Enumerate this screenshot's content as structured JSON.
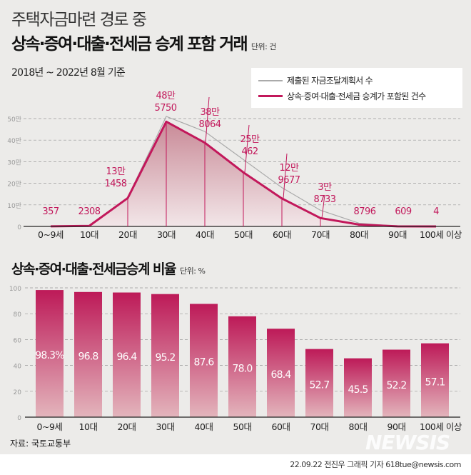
{
  "header": {
    "title_line1": "주택자금마련 경로 중",
    "title_line2": "상속·증여·대출·전세금 승계 포함 거래",
    "unit": "단위: 건",
    "subtitle": "2018년 ~ 2022년 8월 기준"
  },
  "legend": {
    "items": [
      {
        "label": "제출된 자금조달계획서 수",
        "color": "#aaaaaa"
      },
      {
        "label": "상속·증여·대출·전세금 승계가 포함된 건수",
        "color": "#c2185b"
      }
    ]
  },
  "section2": {
    "title": "상속·증여·대출·전세금승계 비율",
    "unit": "단위: %"
  },
  "footer": {
    "source": "자료: 국토교통부",
    "credit": "22.09.22 전진우 그래픽 기자 618tue@newsis.com",
    "watermark": "NEWSIS"
  },
  "colors": {
    "accent": "#c2185b",
    "gray_line": "#aaaaaa",
    "background": "#ecebe9"
  },
  "chart_data": [
    {
      "type": "area",
      "categories": [
        "0~9세",
        "10대",
        "20대",
        "30대",
        "40대",
        "50대",
        "60대",
        "70대",
        "80대",
        "90대",
        "100세 이상"
      ],
      "yticks": [
        "0",
        "10만",
        "20만",
        "30만",
        "40만",
        "50만"
      ],
      "ylim": [
        0,
        500000
      ],
      "grid": true,
      "legend": "top-right",
      "series": [
        {
          "name": "제출된 자금조달계획서 수",
          "values": [
            400,
            2500,
            135000,
            510000,
            440000,
            310000,
            180000,
            75000,
            15000,
            1000,
            10
          ]
        },
        {
          "name": "상속·증여·대출·전세금 승계가 포함된 건수",
          "values": [
            357,
            2308,
            131458,
            485750,
            388064,
            250462,
            129677,
            38733,
            8796,
            609,
            4
          ],
          "labels": [
            [
              "357"
            ],
            [
              "2308"
            ],
            [
              "13만",
              "1458"
            ],
            [
              "48만",
              "5750"
            ],
            [
              "38만",
              "8064"
            ],
            [
              "25만",
              "462"
            ],
            [
              "12만",
              "9677"
            ],
            [
              "3만",
              "8733"
            ],
            [
              "8796"
            ],
            [
              "609"
            ],
            [
              "4"
            ]
          ]
        }
      ]
    },
    {
      "type": "bar",
      "categories": [
        "0~9세",
        "10대",
        "20대",
        "30대",
        "40대",
        "50대",
        "60대",
        "70대",
        "80대",
        "90대",
        "100세 이상"
      ],
      "values": [
        98.3,
        96.8,
        96.4,
        95.2,
        87.6,
        78.0,
        68.4,
        52.7,
        45.5,
        52.2,
        57.1
      ],
      "labels": [
        "98.3%",
        "96.8",
        "96.4",
        "95.2",
        "87.6",
        "78.0",
        "68.4",
        "52.7",
        "45.5",
        "52.2",
        "57.1"
      ],
      "yticks": [
        "0",
        "20",
        "40",
        "60",
        "80",
        "100"
      ],
      "ylim": [
        0,
        100
      ],
      "grid": true
    }
  ]
}
